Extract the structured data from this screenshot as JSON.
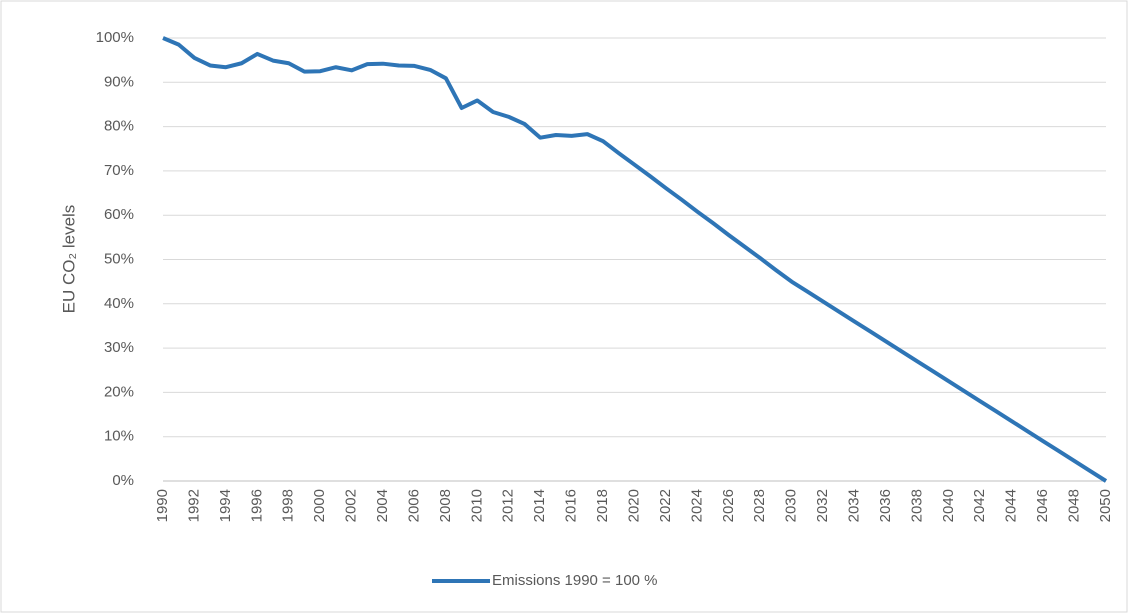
{
  "chart_data": {
    "type": "line",
    "y_label": "EU CO₂ levels",
    "x": [
      1990,
      1991,
      1992,
      1993,
      1994,
      1995,
      1996,
      1997,
      1998,
      1999,
      2000,
      2001,
      2002,
      2003,
      2004,
      2005,
      2006,
      2007,
      2008,
      2009,
      2010,
      2011,
      2012,
      2013,
      2014,
      2015,
      2016,
      2017,
      2018,
      2019,
      2020,
      2021,
      2022,
      2023,
      2024,
      2025,
      2026,
      2027,
      2028,
      2029,
      2030,
      2031,
      2032,
      2033,
      2034,
      2035,
      2036,
      2037,
      2038,
      2039,
      2040,
      2041,
      2042,
      2043,
      2044,
      2045,
      2046,
      2047,
      2048,
      2049,
      2050
    ],
    "series": [
      {
        "name": "Emissions 1990 = 100 %",
        "color": "#2e75b6",
        "values": [
          100,
          98.5,
          95.5,
          93.8,
          93.4,
          94.3,
          96.4,
          94.9,
          94.3,
          92.4,
          92.5,
          93.4,
          92.7,
          94.1,
          94.2,
          93.8,
          93.7,
          92.8,
          90.9,
          84.2,
          85.9,
          83.3,
          82.2,
          80.6,
          77.5,
          78.1,
          77.9,
          78.3,
          76.7,
          74.0,
          71.4,
          68.8,
          66.1,
          63.5,
          60.8,
          58.2,
          55.5,
          52.9,
          50.3,
          47.6,
          45,
          42.75,
          40.5,
          38.25,
          36,
          33.75,
          31.5,
          29.25,
          27,
          24.75,
          22.5,
          20.25,
          18,
          15.75,
          13.5,
          11.25,
          9,
          6.75,
          4.5,
          2.25,
          0
        ]
      }
    ],
    "xlim": [
      1990,
      2050
    ],
    "xticks": [
      1990,
      1992,
      1994,
      1996,
      1998,
      2000,
      2002,
      2004,
      2006,
      2008,
      2010,
      2012,
      2014,
      2016,
      2018,
      2020,
      2022,
      2024,
      2026,
      2028,
      2030,
      2032,
      2034,
      2036,
      2038,
      2040,
      2042,
      2044,
      2046,
      2048,
      2050
    ],
    "ylim": [
      0,
      100
    ],
    "yticks": [
      {
        "value": 0,
        "label": "0%"
      },
      {
        "value": 10,
        "label": "10%"
      },
      {
        "value": 20,
        "label": "20%"
      },
      {
        "value": 30,
        "label": "30%"
      },
      {
        "value": 40,
        "label": "40%"
      },
      {
        "value": 50,
        "label": "50%"
      },
      {
        "value": 60,
        "label": "60%"
      },
      {
        "value": 70,
        "label": "70%"
      },
      {
        "value": 80,
        "label": "80%"
      },
      {
        "value": 90,
        "label": "90%"
      },
      {
        "value": 100,
        "label": "100%"
      }
    ],
    "grid": true,
    "legend": "bottom"
  }
}
